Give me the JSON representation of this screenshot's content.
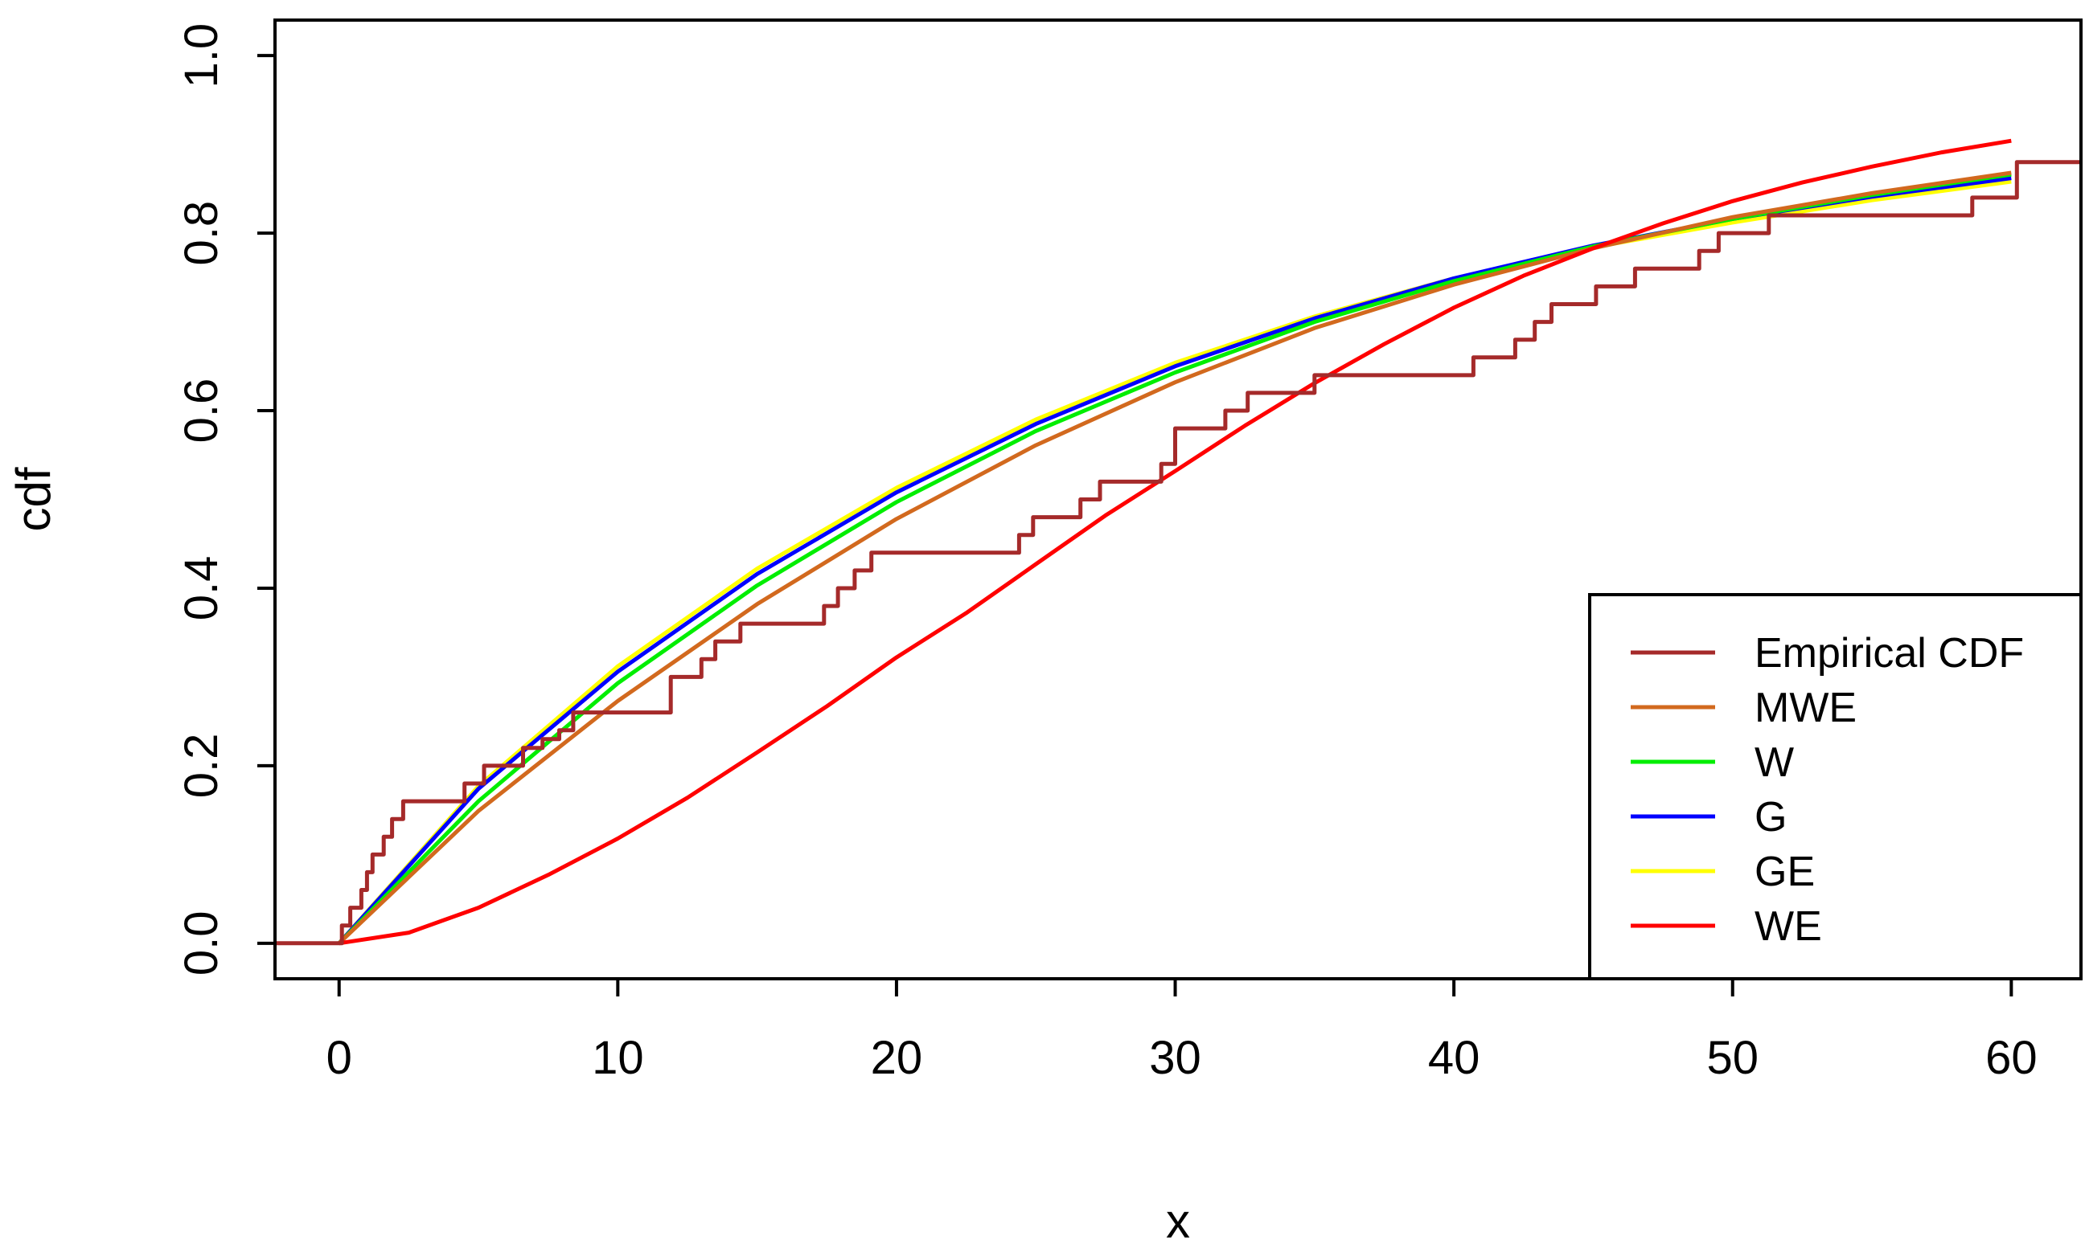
{
  "chart_data": {
    "type": "line",
    "title": "",
    "xlabel": "x",
    "ylabel": "cdf",
    "xlim": [
      -2.3,
      62.5
    ],
    "ylim": [
      -0.04,
      1.04
    ],
    "x_ticks": [
      0,
      10,
      20,
      30,
      40,
      50,
      60
    ],
    "x_tick_labels": [
      "0",
      "10",
      "20",
      "30",
      "40",
      "50",
      "60"
    ],
    "y_ticks": [
      0.0,
      0.2,
      0.4,
      0.6,
      0.8,
      1.0
    ],
    "y_tick_labels": [
      "0.0",
      "0.2",
      "0.4",
      "0.6",
      "0.8",
      "1.0"
    ],
    "grid": false,
    "legend_position": "bottom-right",
    "series": [
      {
        "name": "Empirical CDF",
        "color": "#A52A2A",
        "style": "step",
        "x": [
          -2.3,
          0.1,
          0.4,
          0.8,
          1.0,
          1.2,
          1.6,
          1.9,
          2.3,
          4.5,
          5.2,
          6.6,
          7.3,
          7.9,
          8.4,
          11.9,
          13.0,
          13.5,
          14.4,
          17.4,
          17.9,
          18.5,
          19.1,
          24.4,
          24.9,
          26.6,
          27.3,
          29.5,
          30.0,
          31.8,
          32.6,
          35.0,
          40.7,
          42.2,
          42.9,
          43.5,
          45.1,
          46.5,
          48.8,
          49.5,
          51.3,
          58.6,
          60.2,
          62.5
        ],
        "y": [
          0.0,
          0.02,
          0.04,
          0.06,
          0.08,
          0.1,
          0.12,
          0.14,
          0.16,
          0.18,
          0.2,
          0.22,
          0.23,
          0.24,
          0.26,
          0.3,
          0.32,
          0.34,
          0.36,
          0.38,
          0.4,
          0.42,
          0.44,
          0.46,
          0.48,
          0.5,
          0.52,
          0.54,
          0.58,
          0.6,
          0.62,
          0.64,
          0.66,
          0.68,
          0.7,
          0.72,
          0.74,
          0.76,
          0.78,
          0.8,
          0.82,
          0.84,
          0.88,
          0.88
        ]
      },
      {
        "name": "MWE",
        "color": "#D2691E",
        "x": [
          0,
          5,
          10,
          15,
          20,
          25,
          30,
          35,
          40,
          45,
          50,
          55,
          60
        ],
        "y": [
          0.0,
          0.149,
          0.273,
          0.382,
          0.478,
          0.561,
          0.632,
          0.693,
          0.742,
          0.783,
          0.818,
          0.845,
          0.868
        ]
      },
      {
        "name": "W",
        "color": "#00EE00",
        "x": [
          0,
          5,
          10,
          15,
          20,
          25,
          30,
          35,
          40,
          45,
          50,
          55,
          60
        ],
        "y": [
          0.0,
          0.16,
          0.293,
          0.403,
          0.497,
          0.577,
          0.643,
          0.7,
          0.746,
          0.785,
          0.816,
          0.843,
          0.866
        ]
      },
      {
        "name": "G",
        "color": "#0000FF",
        "x": [
          0,
          5,
          10,
          15,
          20,
          25,
          30,
          35,
          40,
          45,
          50,
          55,
          60
        ],
        "y": [
          0.0,
          0.174,
          0.306,
          0.416,
          0.508,
          0.585,
          0.65,
          0.704,
          0.749,
          0.786,
          0.816,
          0.841,
          0.862
        ]
      },
      {
        "name": "GE",
        "color": "#FFFF00",
        "x": [
          0,
          5,
          10,
          15,
          20,
          25,
          30,
          35,
          40,
          45,
          50,
          55,
          60
        ],
        "y": [
          0.0,
          0.177,
          0.312,
          0.422,
          0.513,
          0.59,
          0.654,
          0.706,
          0.749,
          0.784,
          0.812,
          0.837,
          0.858
        ]
      },
      {
        "name": "WE",
        "color": "#FF0000",
        "x": [
          0,
          2.5,
          5,
          7.5,
          10,
          12.5,
          15,
          17.5,
          20,
          22.5,
          25,
          27.5,
          30,
          32.5,
          35,
          37.5,
          40,
          42.5,
          45,
          47.5,
          50,
          52.5,
          55,
          57.5,
          60
        ],
        "y": [
          0.0,
          0.012,
          0.04,
          0.077,
          0.118,
          0.164,
          0.215,
          0.267,
          0.322,
          0.372,
          0.427,
          0.482,
          0.532,
          0.583,
          0.631,
          0.675,
          0.716,
          0.752,
          0.783,
          0.811,
          0.836,
          0.857,
          0.875,
          0.891,
          0.904
        ]
      }
    ]
  }
}
